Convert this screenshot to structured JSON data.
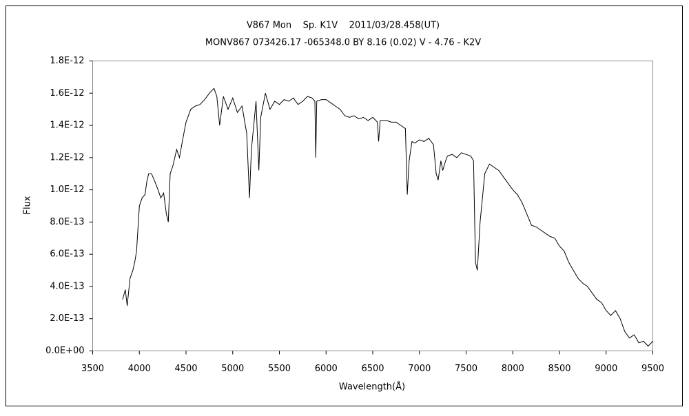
{
  "chart_data": {
    "type": "line",
    "title": "V867 Mon    Sp. K1V    2011/03/28.458(UT)",
    "subtitle": "MONV867 073426.17 -065348.0 BY 8.16 (0.02) V - 4.76 - K2V",
    "xlabel": "Wavelength(Å)",
    "ylabel": "Flux",
    "xlim": [
      3500,
      9500
    ],
    "xticks": [
      3500,
      4000,
      4500,
      5000,
      5500,
      6000,
      6500,
      7000,
      7500,
      8000,
      8500,
      9000,
      9500
    ],
    "ylim": [
      0,
      1.8e-12
    ],
    "yticks": [
      {
        "value": 0,
        "label": "0.0E+00"
      },
      {
        "value": 2e-13,
        "label": "2.0E-13"
      },
      {
        "value": 4e-13,
        "label": "4.0E-13"
      },
      {
        "value": 6e-13,
        "label": "6.0E-13"
      },
      {
        "value": 8e-13,
        "label": "8.0E-13"
      },
      {
        "value": 1e-12,
        "label": "1.0E-12"
      },
      {
        "value": 1.2e-12,
        "label": "1.2E-12"
      },
      {
        "value": 1.4e-12,
        "label": "1.4E-12"
      },
      {
        "value": 1.6e-12,
        "label": "1.6E-12"
      },
      {
        "value": 1.8e-12,
        "label": "1.8E-12"
      }
    ],
    "grid": false,
    "color": "#000000",
    "x": [
      3820,
      3850,
      3870,
      3900,
      3930,
      3950,
      3970,
      4000,
      4030,
      4060,
      4080,
      4100,
      4130,
      4160,
      4200,
      4230,
      4260,
      4290,
      4310,
      4330,
      4360,
      4400,
      4430,
      4460,
      4500,
      4550,
      4600,
      4650,
      4700,
      4750,
      4800,
      4830,
      4860,
      4900,
      4950,
      5000,
      5050,
      5100,
      5150,
      5180,
      5200,
      5250,
      5280,
      5300,
      5350,
      5400,
      5450,
      5500,
      5550,
      5600,
      5650,
      5700,
      5750,
      5800,
      5850,
      5880,
      5890,
      5900,
      5950,
      6000,
      6050,
      6100,
      6150,
      6200,
      6250,
      6300,
      6350,
      6400,
      6450,
      6500,
      6550,
      6563,
      6580,
      6650,
      6700,
      6750,
      6800,
      6850,
      6870,
      6890,
      6920,
      6950,
      7000,
      7050,
      7100,
      7150,
      7180,
      7200,
      7230,
      7250,
      7280,
      7300,
      7350,
      7400,
      7450,
      7500,
      7550,
      7580,
      7600,
      7620,
      7650,
      7700,
      7750,
      7800,
      7850,
      7900,
      7950,
      8000,
      8050,
      8100,
      8150,
      8200,
      8250,
      8300,
      8350,
      8400,
      8450,
      8500,
      8550,
      8600,
      8650,
      8700,
      8750,
      8800,
      8850,
      8900,
      8950,
      9000,
      9050,
      9100,
      9150,
      9200,
      9250,
      9300,
      9350,
      9400,
      9450,
      9500
    ],
    "values": [
      3.2e-13,
      3.8e-13,
      2.8e-13,
      4.5e-13,
      5e-13,
      5.5e-13,
      6.2e-13,
      9e-13,
      9.5e-13,
      9.7e-13,
      1.05e-12,
      1.1e-12,
      1.1e-12,
      1.06e-12,
      1e-12,
      9.5e-13,
      9.8e-13,
      8.5e-13,
      8e-13,
      1.1e-12,
      1.15e-12,
      1.25e-12,
      1.2e-12,
      1.3e-12,
      1.42e-12,
      1.5e-12,
      1.52e-12,
      1.53e-12,
      1.56e-12,
      1.6e-12,
      1.63e-12,
      1.58e-12,
      1.4e-12,
      1.58e-12,
      1.5e-12,
      1.57e-12,
      1.48e-12,
      1.52e-12,
      1.35e-12,
      9.5e-13,
      1.25e-12,
      1.55e-12,
      1.12e-12,
      1.45e-12,
      1.6e-12,
      1.5e-12,
      1.55e-12,
      1.53e-12,
      1.56e-12,
      1.55e-12,
      1.57e-12,
      1.53e-12,
      1.55e-12,
      1.58e-12,
      1.57e-12,
      1.55e-12,
      1.2e-12,
      1.55e-12,
      1.56e-12,
      1.56e-12,
      1.54e-12,
      1.52e-12,
      1.5e-12,
      1.46e-12,
      1.45e-12,
      1.46e-12,
      1.44e-12,
      1.45e-12,
      1.43e-12,
      1.45e-12,
      1.42e-12,
      1.3e-12,
      1.43e-12,
      1.43e-12,
      1.42e-12,
      1.42e-12,
      1.4e-12,
      1.38e-12,
      9.7e-13,
      1.18e-12,
      1.3e-12,
      1.29e-12,
      1.31e-12,
      1.3e-12,
      1.32e-12,
      1.28e-12,
      1.1e-12,
      1.06e-12,
      1.18e-12,
      1.12e-12,
      1.18e-12,
      1.21e-12,
      1.22e-12,
      1.2e-12,
      1.23e-12,
      1.22e-12,
      1.21e-12,
      1.18e-12,
      5.5e-13,
      5e-13,
      8e-13,
      1.1e-12,
      1.16e-12,
      1.14e-12,
      1.12e-12,
      1.08e-12,
      1.04e-12,
      1e-12,
      9.7e-13,
      9.2e-13,
      8.5e-13,
      7.8e-13,
      7.7e-13,
      7.5e-13,
      7.3e-13,
      7.1e-13,
      7e-13,
      6.5e-13,
      6.2e-13,
      5.5e-13,
      5e-13,
      4.5e-13,
      4.2e-13,
      4e-13,
      3.6e-13,
      3.2e-13,
      3e-13,
      2.5e-13,
      2.2e-13,
      2.5e-13,
      2e-13,
      1.2e-13,
      8e-14,
      1e-13,
      5e-14,
      6e-14,
      3e-14,
      6e-14
    ]
  }
}
